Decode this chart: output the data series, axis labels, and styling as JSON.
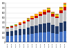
{
  "years": [
    "08/09",
    "09/10",
    "10/11",
    "11/12",
    "12/13",
    "13/14",
    "14/15",
    "15/16",
    "16/17",
    "17/18",
    "18/19",
    "19/20",
    "20/21",
    "21/22",
    "22/23"
  ],
  "segments": {
    "blue": [
      130,
      135,
      140,
      150,
      155,
      165,
      175,
      185,
      195,
      205,
      215,
      185,
      170,
      210,
      230
    ],
    "dark_navy": [
      90,
      98,
      105,
      115,
      122,
      138,
      148,
      158,
      168,
      178,
      188,
      165,
      152,
      185,
      200
    ],
    "light_gray": [
      60,
      70,
      82,
      92,
      105,
      122,
      138,
      152,
      168,
      182,
      198,
      178,
      168,
      200,
      218
    ],
    "red": [
      15,
      18,
      20,
      23,
      26,
      30,
      35,
      40,
      45,
      50,
      50,
      45,
      40,
      58,
      65
    ],
    "yellow": [
      8,
      10,
      12,
      14,
      16,
      19,
      22,
      25,
      27,
      29,
      32,
      27,
      25,
      37,
      50
    ],
    "green": [
      4,
      4,
      5,
      6,
      7,
      8,
      9,
      10,
      11,
      12,
      13,
      11,
      9,
      14,
      18
    ],
    "orange": [
      4,
      4,
      5,
      6,
      7,
      9,
      11,
      12,
      13,
      14,
      15,
      13,
      11,
      17,
      22
    ]
  },
  "colors": {
    "blue": "#4472c4",
    "dark_navy": "#203864",
    "light_gray": "#bfbfbf",
    "red": "#c00000",
    "yellow": "#ffc000",
    "green": "#70ad47",
    "orange": "#ed7d31"
  },
  "ylim": [
    0,
    800
  ],
  "yticks": [
    0,
    100,
    200,
    300,
    400,
    500,
    600,
    700,
    800
  ],
  "background_color": "#ffffff"
}
